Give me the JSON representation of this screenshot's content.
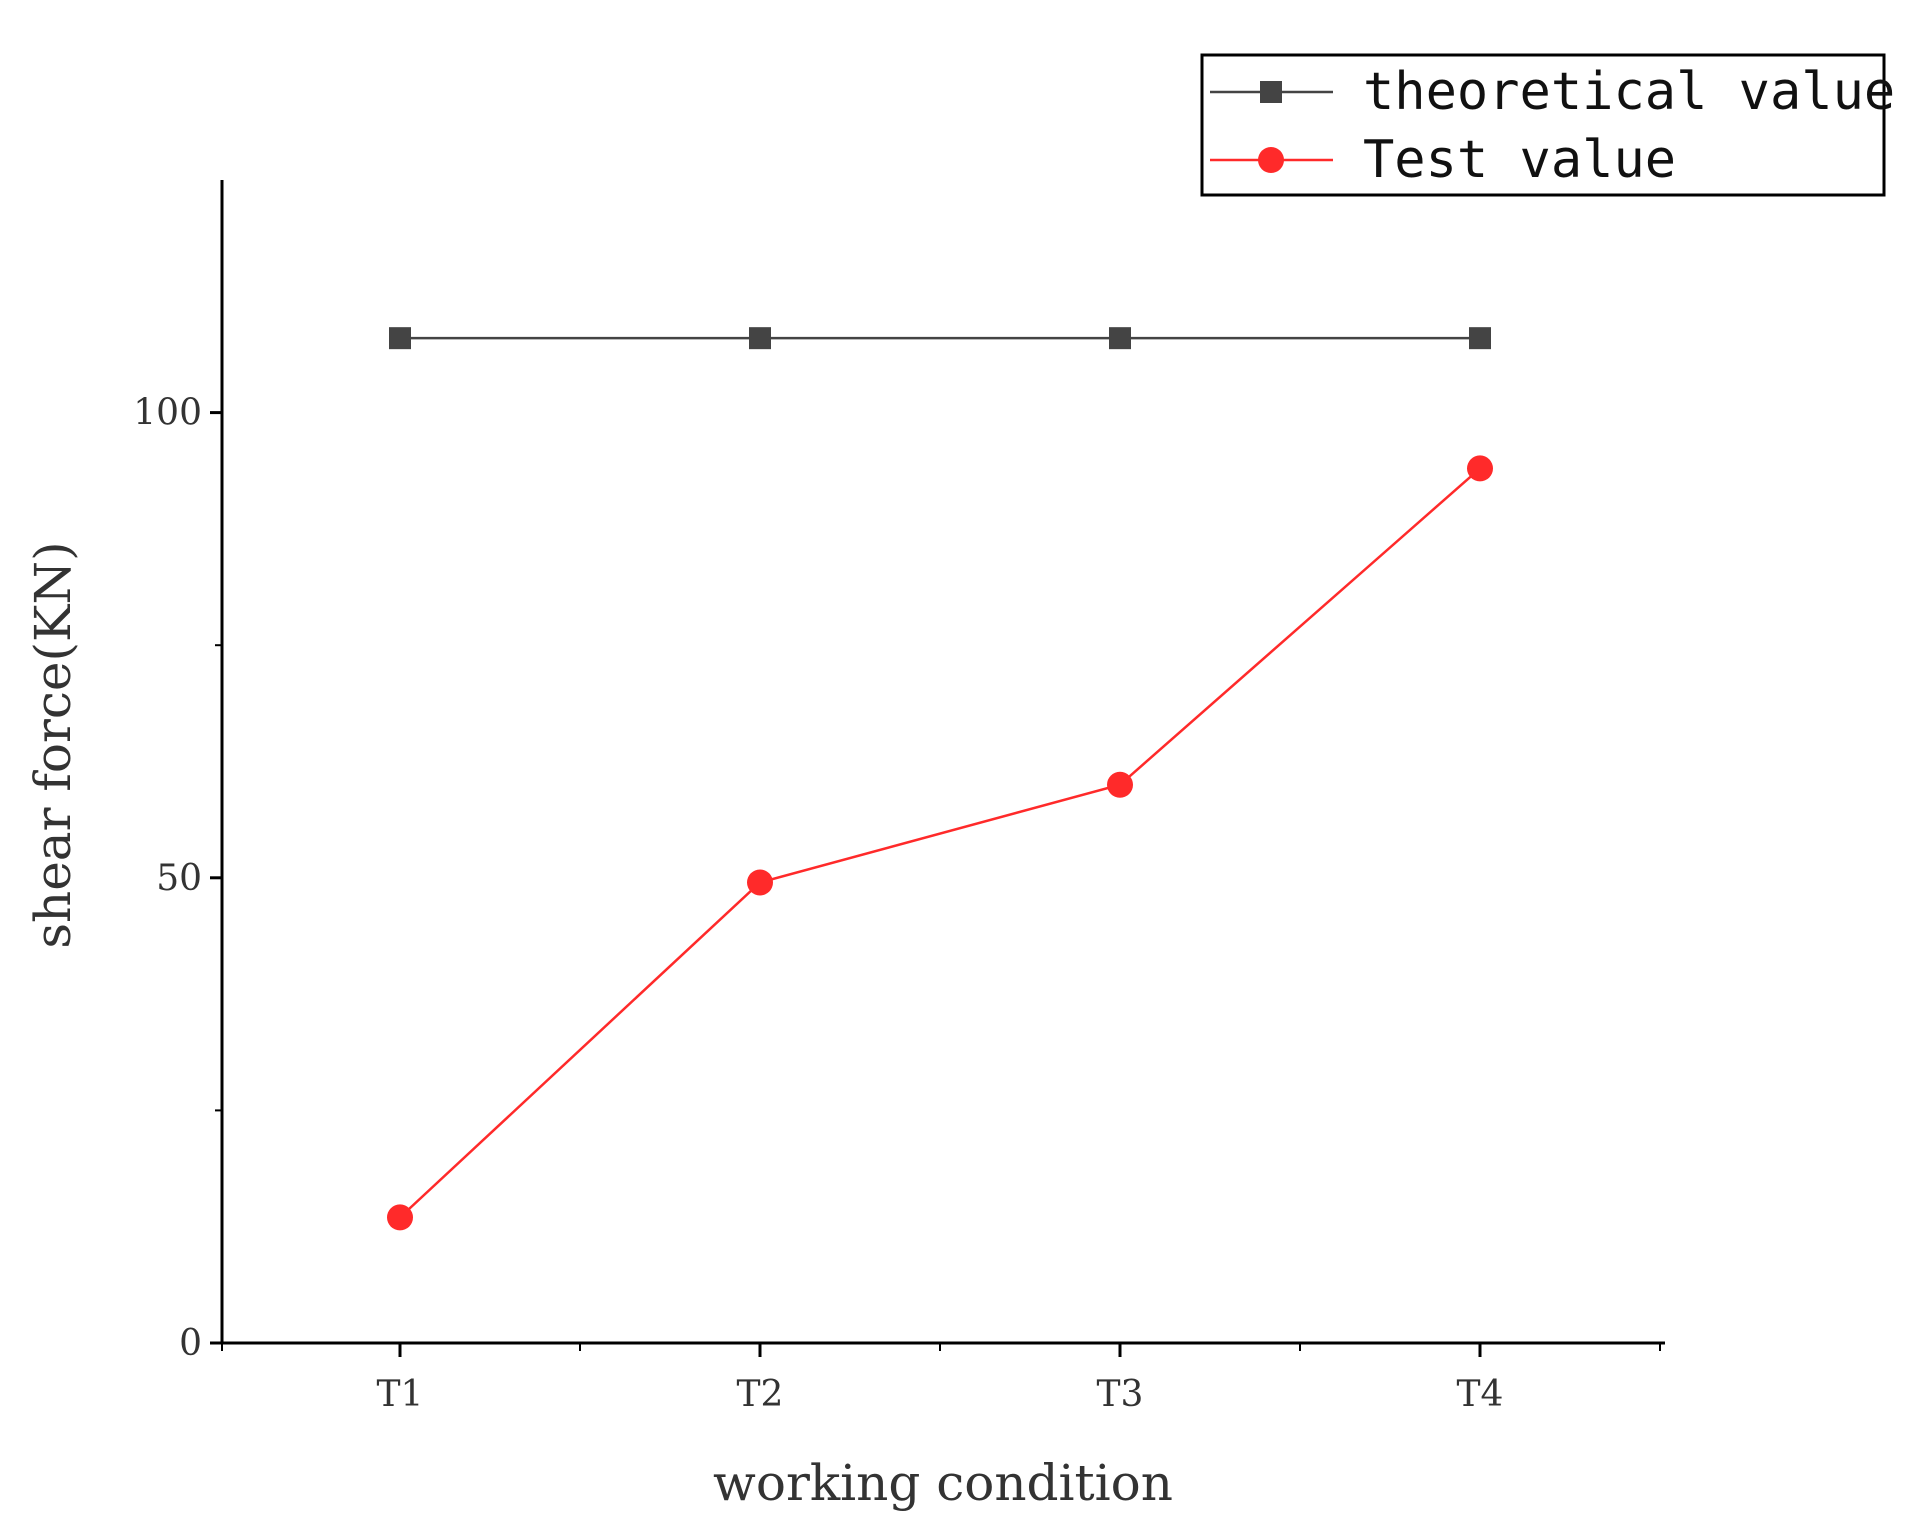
{
  "chart_data": {
    "type": "line",
    "title": "",
    "xlabel": "working condition",
    "ylabel": "shear force(KN)",
    "categories": [
      "T1",
      "T2",
      "T3",
      "T4"
    ],
    "ylim": [
      0,
      125
    ],
    "yticks": [
      "0",
      "50",
      "100"
    ],
    "ytick_values": [
      0,
      50,
      100
    ],
    "y_minor_ticks": [
      25,
      75
    ],
    "grid": false,
    "legend_position": "top-right",
    "series": [
      {
        "name": "theoretical value",
        "values": [
          108,
          108,
          108,
          108
        ],
        "color": "#444444",
        "marker": "square"
      },
      {
        "name": "Test value",
        "values": [
          13.5,
          49.5,
          60,
          94
        ],
        "color": "#ff2a2a",
        "marker": "circle"
      }
    ]
  }
}
